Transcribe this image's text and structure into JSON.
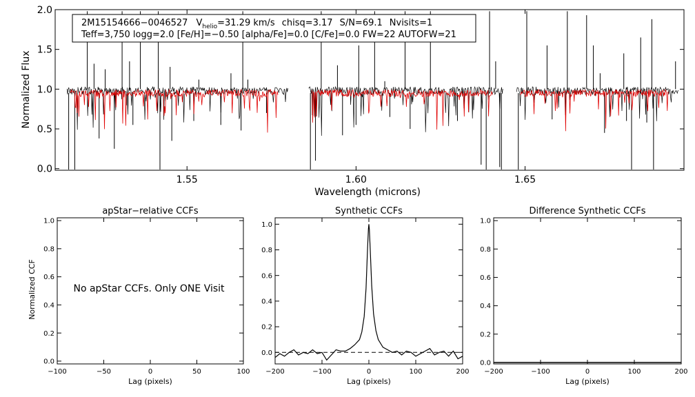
{
  "chart_data": [
    {
      "type": "line",
      "panel": "spectrum",
      "xlabel": "Wavelength (microns)",
      "ylabel": "Normalized Flux",
      "xlim": [
        1.511,
        1.697
      ],
      "ylim": [
        -0.02,
        2.0
      ],
      "xticks": [
        1.55,
        1.6,
        1.65
      ],
      "xtick_labels": [
        "1.55",
        "1.60",
        "1.65"
      ],
      "yticks": [
        0.0,
        0.5,
        1.0,
        1.5,
        2.0
      ],
      "ytick_labels": [
        "0.0",
        "0.5",
        "1.0",
        "1.5",
        "2.0"
      ],
      "info_line1": {
        "id": "2M15154666−0046527",
        "v_prefix": "V",
        "v_sub": "helio",
        "v_value": "=31.29 km/s",
        "chisq": "chisq=3.17",
        "snr": "S/N=69.1",
        "nvisits": "Nvisits=1"
      },
      "info_line2": "Teff=3,750 logg=2.0 [Fe/H]=−0.50 [alpha/Fe]=0.0 [C/Fe]=0.0 FW=22 AUTOFW=21",
      "chips": [
        [
          1.5145,
          1.58
        ],
        [
          1.586,
          1.6435
        ],
        [
          1.6475,
          1.6955
        ]
      ],
      "continuum": 1.0,
      "series": [
        {
          "name": "observed",
          "color": "#000000"
        },
        {
          "name": "synthetic model",
          "color": "#e00000"
        }
      ],
      "emission_spikes": [
        {
          "x": 1.5205,
          "y": 1.98
        },
        {
          "x": 1.5225,
          "y": 1.32
        },
        {
          "x": 1.5258,
          "y": 1.25
        },
        {
          "x": 1.5308,
          "y": 1.98
        },
        {
          "x": 1.533,
          "y": 1.35
        },
        {
          "x": 1.5362,
          "y": 1.98
        },
        {
          "x": 1.5415,
          "y": 1.98
        },
        {
          "x": 1.545,
          "y": 1.28
        },
        {
          "x": 1.5535,
          "y": 1.12
        },
        {
          "x": 1.563,
          "y": 1.2
        },
        {
          "x": 1.5665,
          "y": 1.98
        },
        {
          "x": 1.568,
          "y": 1.12
        },
        {
          "x": 1.5897,
          "y": 1.98
        },
        {
          "x": 1.5945,
          "y": 1.3
        },
        {
          "x": 1.6008,
          "y": 1.55
        },
        {
          "x": 1.6055,
          "y": 1.98
        },
        {
          "x": 1.6085,
          "y": 1.1
        },
        {
          "x": 1.6145,
          "y": 1.98
        },
        {
          "x": 1.622,
          "y": 1.98
        },
        {
          "x": 1.6395,
          "y": 1.98
        },
        {
          "x": 1.6413,
          "y": 1.35
        },
        {
          "x": 1.6505,
          "y": 1.98
        },
        {
          "x": 1.6565,
          "y": 1.55
        },
        {
          "x": 1.6625,
          "y": 1.98
        },
        {
          "x": 1.6682,
          "y": 1.93
        },
        {
          "x": 1.6702,
          "y": 1.55
        },
        {
          "x": 1.6722,
          "y": 1.2
        },
        {
          "x": 1.6792,
          "y": 1.45
        },
        {
          "x": 1.6842,
          "y": 1.65
        },
        {
          "x": 1.6875,
          "y": 1.88
        },
        {
          "x": 1.6945,
          "y": 1.35
        }
      ],
      "absorption_dips": [
        {
          "x": 1.515,
          "y": -0.02
        },
        {
          "x": 1.5168,
          "y": -0.02
        },
        {
          "x": 1.524,
          "y": 0.38
        },
        {
          "x": 1.5285,
          "y": 0.25
        },
        {
          "x": 1.534,
          "y": 0.55
        },
        {
          "x": 1.542,
          "y": -0.02
        },
        {
          "x": 1.5455,
          "y": 0.35
        },
        {
          "x": 1.552,
          "y": 0.6
        },
        {
          "x": 1.56,
          "y": 0.55
        },
        {
          "x": 1.566,
          "y": 0.48
        },
        {
          "x": 1.5735,
          "y": 0.7
        },
        {
          "x": 1.5865,
          "y": -0.02
        },
        {
          "x": 1.588,
          "y": 0.1
        },
        {
          "x": 1.596,
          "y": 0.42
        },
        {
          "x": 1.6,
          "y": 0.55
        },
        {
          "x": 1.61,
          "y": 0.65
        },
        {
          "x": 1.616,
          "y": 0.5
        },
        {
          "x": 1.63,
          "y": 0.6
        },
        {
          "x": 1.637,
          "y": 0.05
        },
        {
          "x": 1.6385,
          "y": -0.02
        },
        {
          "x": 1.6425,
          "y": 0.02
        },
        {
          "x": 1.643,
          "y": -0.02
        },
        {
          "x": 1.648,
          "y": -0.02
        },
        {
          "x": 1.658,
          "y": 0.62
        },
        {
          "x": 1.6735,
          "y": 0.45
        },
        {
          "x": 1.68,
          "y": 0.6
        },
        {
          "x": 1.6815,
          "y": -0.02
        },
        {
          "x": 1.686,
          "y": 0.58
        },
        {
          "x": 1.688,
          "y": -0.02
        }
      ]
    },
    {
      "type": "line",
      "panel": "ccf_apstar",
      "title": "apStar−relative CCFs",
      "xlabel": "Lag (pixels)",
      "ylabel": "Normalized CCF",
      "xlim": [
        -100,
        100
      ],
      "ylim": [
        -0.02,
        1.02
      ],
      "xticks": [
        -100,
        -50,
        0,
        50,
        100
      ],
      "xtick_labels": [
        "−100",
        "−50",
        "0",
        "50",
        "100"
      ],
      "yticks": [
        0.0,
        0.2,
        0.4,
        0.6,
        0.8,
        1.0
      ],
      "ytick_labels": [
        "0.0",
        "0.2",
        "0.4",
        "0.6",
        "0.8",
        "1.0"
      ],
      "message": "No apStar CCFs.  Only ONE Visit",
      "series": []
    },
    {
      "type": "line",
      "panel": "ccf_synthetic",
      "title": "Synthetic CCFs",
      "xlabel": "Lag (pixels)",
      "xlim": [
        -200,
        200
      ],
      "ylim": [
        -0.09,
        1.05
      ],
      "xticks": [
        -200,
        -100,
        0,
        100,
        200
      ],
      "xtick_labels": [
        "−200",
        "−100",
        "0",
        "100",
        "200"
      ],
      "yticks": [
        0.0,
        0.2,
        0.4,
        0.6,
        0.8,
        1.0
      ],
      "ytick_labels": [
        "0.0",
        "0.2",
        "0.4",
        "0.6",
        "0.8",
        "1.0"
      ],
      "baseline": 0.0,
      "series": [
        {
          "name": "synthetic CCF",
          "color": "#000000",
          "x": [
            -200,
            -190,
            -180,
            -170,
            -160,
            -150,
            -140,
            -130,
            -120,
            -110,
            -100,
            -90,
            -80,
            -70,
            -60,
            -50,
            -40,
            -30,
            -20,
            -15,
            -10,
            -6,
            -3,
            -1,
            0,
            1,
            3,
            6,
            10,
            15,
            20,
            30,
            40,
            50,
            60,
            70,
            80,
            90,
            100,
            110,
            120,
            130,
            140,
            150,
            160,
            170,
            180,
            190,
            200
          ],
          "y": [
            -0.04,
            -0.01,
            -0.03,
            0.0,
            0.02,
            -0.02,
            0.0,
            -0.01,
            0.02,
            -0.01,
            0.0,
            -0.06,
            -0.02,
            0.02,
            0.01,
            0.01,
            0.03,
            0.06,
            0.1,
            0.16,
            0.28,
            0.5,
            0.8,
            0.96,
            1.0,
            0.96,
            0.8,
            0.52,
            0.3,
            0.17,
            0.1,
            0.04,
            0.02,
            0.0,
            0.01,
            -0.02,
            0.01,
            0.0,
            -0.03,
            -0.01,
            0.01,
            0.03,
            -0.02,
            0.0,
            0.01,
            -0.03,
            0.01,
            -0.05,
            -0.03
          ]
        }
      ]
    },
    {
      "type": "line",
      "panel": "ccf_difference",
      "title": "Difference Synthetic CCFs",
      "xlabel": "Lag (pixels)",
      "xlim": [
        -200,
        200
      ],
      "ylim": [
        -0.01,
        1.02
      ],
      "xticks": [
        -200,
        -100,
        0,
        100,
        200
      ],
      "xtick_labels": [
        "−200",
        "−100",
        "0",
        "100",
        "200"
      ],
      "yticks": [
        0.0,
        0.2,
        0.4,
        0.6,
        0.8,
        1.0
      ],
      "ytick_labels": [
        "0.0",
        "0.2",
        "0.4",
        "0.6",
        "0.8",
        "1.0"
      ],
      "series": [
        {
          "name": "difference CCF",
          "color": "#000000",
          "x": [
            -200,
            200
          ],
          "y": [
            0.0,
            0.0
          ]
        }
      ]
    }
  ]
}
